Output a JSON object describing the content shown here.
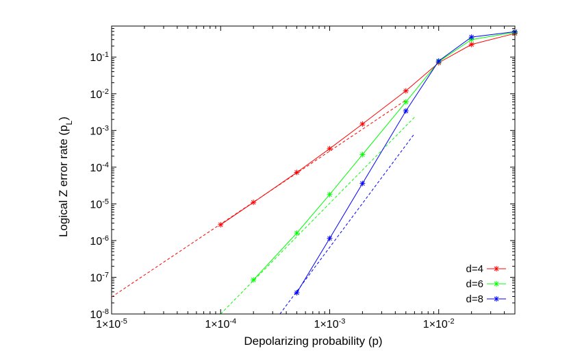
{
  "chart_data": {
    "type": "line",
    "xscale": "log",
    "yscale": "log",
    "xlim": [
      1e-05,
      0.05
    ],
    "ylim": [
      1e-08,
      0.7
    ],
    "xlabel": "Depolarizing probability (p)",
    "ylabel_main": "Logical Z error rate (p",
    "ylabel_sub": "L",
    "ylabel_close": ")",
    "x_tick_labels": [
      {
        "value": 1e-05,
        "mant": "1",
        "times": "×",
        "base": "10",
        "exp": "-5"
      },
      {
        "value": 0.0001,
        "mant": "1",
        "times": "×",
        "base": "10",
        "exp": "-4"
      },
      {
        "value": 0.001,
        "mant": "1",
        "times": "×",
        "base": "10",
        "exp": "-3"
      },
      {
        "value": 0.01,
        "mant": "1",
        "times": "×",
        "base": "10",
        "exp": "-2"
      }
    ],
    "y_tick_labels": [
      {
        "value": 1e-08,
        "base": "10",
        "exp": "-8"
      },
      {
        "value": 1e-07,
        "base": "10",
        "exp": "-7"
      },
      {
        "value": 1e-06,
        "base": "10",
        "exp": "-6"
      },
      {
        "value": 1e-05,
        "base": "10",
        "exp": "-5"
      },
      {
        "value": 0.0001,
        "base": "10",
        "exp": "-4"
      },
      {
        "value": 0.001,
        "base": "10",
        "exp": "-3"
      },
      {
        "value": 0.01,
        "base": "10",
        "exp": "-2"
      },
      {
        "value": 0.1,
        "base": "10",
        "exp": "-1"
      }
    ],
    "legend_position": "bottom-right",
    "series": [
      {
        "name": "d=4",
        "color": "#ff0000",
        "x": [
          0.0001,
          0.0002,
          0.0005,
          0.001,
          0.002,
          0.005,
          0.01,
          0.02,
          0.05
        ],
        "y": [
          2.7e-06,
          1.1e-05,
          7.2e-05,
          0.00032,
          0.0015,
          0.012,
          0.07,
          0.22,
          0.44
        ]
      },
      {
        "name": "d=6",
        "color": "#00ff00",
        "x": [
          0.0002,
          0.0005,
          0.001,
          0.002,
          0.005,
          0.01,
          0.02,
          0.05
        ],
        "y": [
          8.5e-08,
          1.6e-06,
          1.8e-05,
          0.00022,
          0.006,
          0.075,
          0.3,
          0.47
        ]
      },
      {
        "name": "d=8",
        "color": "#0000ff",
        "x": [
          0.0005,
          0.001,
          0.002,
          0.005,
          0.01,
          0.02,
          0.05
        ],
        "y": [
          3.8e-08,
          1.15e-06,
          3.6e-05,
          0.0034,
          0.078,
          0.35,
          0.49
        ]
      }
    ],
    "fits": [
      {
        "color": "#ff0000",
        "x": [
          1e-05,
          0.005
        ],
        "y": [
          2.9e-08,
          0.0067
        ]
      },
      {
        "color": "#00ff00",
        "x": [
          0.0001,
          0.006
        ],
        "y": [
          1e-08,
          0.0023
        ]
      },
      {
        "color": "#0000ff",
        "x": [
          0.00035,
          0.006
        ],
        "y": [
          1e-08,
          0.00082
        ]
      }
    ]
  }
}
